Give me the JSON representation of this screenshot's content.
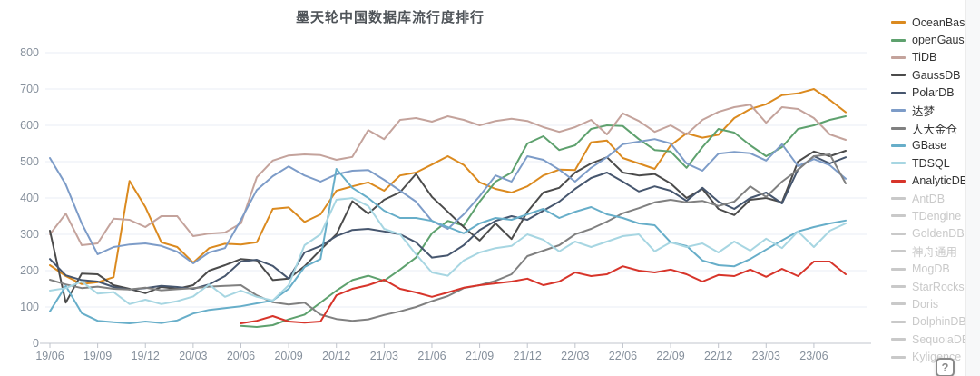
{
  "title": "墨天轮中国数据库流行度排行",
  "help_button": {
    "label": "?"
  },
  "colors": {
    "grid": "#e8edf4",
    "axis": "#c0c4cc",
    "tick_label": "#86909c",
    "disabled_legend": "#c9c9c9"
  },
  "chart_data": {
    "type": "line",
    "title": "墨天轮中国数据库流行度排行",
    "xlabel": "",
    "ylabel": "",
    "ylim": [
      0,
      800
    ],
    "y_ticks": [
      0,
      100,
      200,
      300,
      400,
      500,
      600,
      700,
      800
    ],
    "x_tick_labels": [
      "19/06",
      "19/09",
      "19/12",
      "20/03",
      "20/06",
      "20/09",
      "20/12",
      "21/03",
      "21/06",
      "21/09",
      "21/12",
      "22/03",
      "22/06",
      "22/09",
      "22/12",
      "23/03",
      "23/06"
    ],
    "x": [
      "19/06",
      "19/07",
      "19/08",
      "19/09",
      "19/10",
      "19/11",
      "19/12",
      "20/01",
      "20/02",
      "20/03",
      "20/04",
      "20/05",
      "20/06",
      "20/07",
      "20/08",
      "20/09",
      "20/10",
      "20/11",
      "20/12",
      "21/01",
      "21/02",
      "21/03",
      "21/04",
      "21/05",
      "21/06",
      "21/07",
      "21/08",
      "21/09",
      "21/10",
      "21/11",
      "21/12",
      "22/01",
      "22/02",
      "22/03",
      "22/04",
      "22/05",
      "22/06",
      "22/07",
      "22/08",
      "22/09",
      "22/10",
      "22/11",
      "22/12",
      "23/01",
      "23/02",
      "23/03",
      "23/04",
      "23/05",
      "23/06",
      "23/07",
      "23/08"
    ],
    "grid": true,
    "legend_position": "right",
    "series": [
      {
        "name": "OceanBase",
        "color": "#db8a1f",
        "active": true,
        "values": [
          215,
          185,
          163,
          168,
          182,
          447,
          375,
          278,
          265,
          222,
          262,
          274,
          272,
          278,
          370,
          374,
          334,
          355,
          420,
          432,
          443,
          420,
          462,
          470,
          492,
          515,
          491,
          443,
          425,
          415,
          432,
          462,
          478,
          477,
          553,
          558,
          510,
          495,
          480,
          545,
          578,
          566,
          574,
          620,
          645,
          658,
          683,
          688,
          700,
          670,
          636
        ]
      },
      {
        "name": "openGauss",
        "color": "#5ea16e",
        "active": true,
        "values": [
          null,
          null,
          null,
          null,
          null,
          null,
          null,
          null,
          null,
          null,
          null,
          null,
          48,
          45,
          50,
          66,
          79,
          112,
          145,
          174,
          186,
          172,
          203,
          236,
          303,
          337,
          324,
          390,
          445,
          470,
          550,
          570,
          532,
          545,
          590,
          600,
          598,
          562,
          532,
          528,
          483,
          540,
          590,
          580,
          545,
          515,
          540,
          590,
          600,
          615,
          625
        ]
      },
      {
        "name": "TiDB",
        "color": "#c4a39c",
        "active": true,
        "values": [
          300,
          357,
          270,
          275,
          343,
          340,
          320,
          350,
          350,
          295,
          302,
          305,
          330,
          457,
          503,
          517,
          520,
          518,
          505,
          513,
          587,
          562,
          615,
          620,
          610,
          625,
          615,
          600,
          612,
          618,
          612,
          595,
          582,
          595,
          615,
          575,
          633,
          612,
          582,
          600,
          575,
          615,
          637,
          650,
          657,
          607,
          650,
          645,
          620,
          575,
          560
        ]
      },
      {
        "name": "GaussDB",
        "color": "#4b4b4b",
        "active": true,
        "values": [
          310,
          112,
          192,
          190,
          160,
          150,
          138,
          155,
          150,
          160,
          200,
          215,
          232,
          228,
          174,
          178,
          212,
          257,
          300,
          391,
          357,
          395,
          416,
          466,
          403,
          362,
          320,
          283,
          330,
          287,
          362,
          415,
          428,
          470,
          495,
          512,
          470,
          462,
          466,
          440,
          400,
          425,
          370,
          353,
          395,
          400,
          388,
          500,
          528,
          515,
          530
        ]
      },
      {
        "name": "PolarDB",
        "color": "#46566e",
        "active": true,
        "values": [
          232,
          187,
          174,
          170,
          155,
          148,
          152,
          158,
          155,
          150,
          162,
          185,
          225,
          230,
          213,
          178,
          250,
          268,
          295,
          312,
          315,
          308,
          300,
          278,
          236,
          242,
          270,
          312,
          337,
          350,
          340,
          365,
          390,
          425,
          455,
          470,
          445,
          418,
          432,
          420,
          392,
          428,
          390,
          370,
          400,
          415,
          385,
          478,
          515,
          495,
          512
        ]
      },
      {
        "name": "达梦",
        "color": "#7d9cc8",
        "active": true,
        "values": [
          510,
          437,
          330,
          245,
          265,
          272,
          275,
          268,
          252,
          220,
          250,
          262,
          340,
          422,
          460,
          487,
          462,
          445,
          465,
          475,
          477,
          450,
          420,
          390,
          337,
          315,
          355,
          405,
          462,
          445,
          515,
          505,
          478,
          445,
          483,
          512,
          548,
          555,
          562,
          550,
          495,
          475,
          522,
          527,
          523,
          503,
          548,
          488,
          507,
          490,
          453
        ]
      },
      {
        "name": "人大金仓",
        "color": "#808080",
        "active": true,
        "values": [
          175,
          162,
          152,
          156,
          150,
          148,
          153,
          146,
          149,
          152,
          156,
          158,
          160,
          132,
          113,
          107,
          112,
          79,
          67,
          62,
          66,
          78,
          88,
          100,
          116,
          130,
          152,
          160,
          172,
          190,
          240,
          255,
          270,
          300,
          315,
          335,
          358,
          372,
          388,
          395,
          388,
          392,
          378,
          390,
          432,
          403,
          445,
          478,
          515,
          520,
          440
        ]
      },
      {
        "name": "GBase",
        "color": "#67aec9",
        "active": true,
        "values": [
          88,
          158,
          83,
          62,
          58,
          55,
          60,
          56,
          63,
          82,
          92,
          97,
          102,
          110,
          118,
          150,
          210,
          232,
          480,
          428,
          400,
          365,
          345,
          345,
          337,
          320,
          303,
          330,
          345,
          340,
          355,
          370,
          345,
          362,
          375,
          355,
          345,
          330,
          325,
          278,
          268,
          228,
          215,
          212,
          232,
          258,
          283,
          308,
          320,
          330,
          338
        ]
      },
      {
        "name": "TDSQL",
        "color": "#a7d6e2",
        "active": true,
        "values": [
          145,
          152,
          170,
          137,
          141,
          108,
          120,
          108,
          116,
          129,
          162,
          128,
          145,
          128,
          118,
          160,
          270,
          300,
          395,
          400,
          378,
          315,
          300,
          245,
          195,
          186,
          228,
          250,
          262,
          268,
          300,
          285,
          253,
          280,
          265,
          280,
          295,
          300,
          253,
          278,
          265,
          275,
          250,
          280,
          255,
          288,
          262,
          308,
          265,
          310,
          330
        ]
      },
      {
        "name": "AnalyticDB",
        "color": "#d7342a",
        "active": true,
        "values": [
          null,
          null,
          null,
          null,
          null,
          null,
          null,
          null,
          null,
          null,
          null,
          null,
          55,
          62,
          75,
          60,
          57,
          60,
          132,
          150,
          160,
          175,
          150,
          140,
          128,
          140,
          153,
          160,
          165,
          170,
          178,
          160,
          170,
          195,
          185,
          190,
          212,
          200,
          195,
          203,
          190,
          170,
          188,
          185,
          203,
          183,
          205,
          185,
          225,
          225,
          190
        ]
      },
      {
        "name": "AntDB",
        "color": "#c9c9c9",
        "active": false,
        "values": null
      },
      {
        "name": "TDengine",
        "color": "#c9c9c9",
        "active": false,
        "values": null
      },
      {
        "name": "GoldenDB",
        "color": "#c9c9c9",
        "active": false,
        "values": null
      },
      {
        "name": "神舟通用",
        "color": "#c9c9c9",
        "active": false,
        "values": null
      },
      {
        "name": "MogDB",
        "color": "#c9c9c9",
        "active": false,
        "values": null
      },
      {
        "name": "StarRocks",
        "color": "#c9c9c9",
        "active": false,
        "values": null
      },
      {
        "name": "Doris",
        "color": "#c9c9c9",
        "active": false,
        "values": null
      },
      {
        "name": "DolphinDB",
        "color": "#c9c9c9",
        "active": false,
        "values": null
      },
      {
        "name": "SequoiaDB",
        "color": "#c9c9c9",
        "active": false,
        "values": null
      },
      {
        "name": "Kyligence",
        "color": "#c9c9c9",
        "active": false,
        "values": null
      }
    ]
  }
}
